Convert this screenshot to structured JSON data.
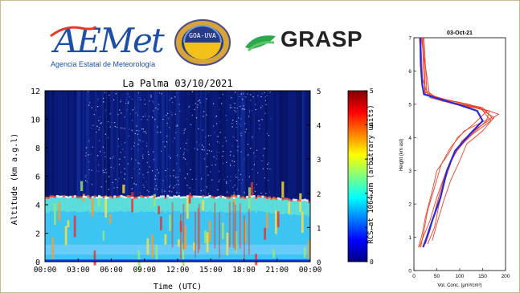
{
  "logos": {
    "aemet_word": "AEMet",
    "aemet_sub": "Agencia Estatal de Meteorología",
    "goa_text": "GOA-UVA",
    "grasp_text": "GRASP",
    "icons": [
      "aemet-logo",
      "goa-uva-seal",
      "grasp-leaf-icon"
    ]
  },
  "chart_data": [
    {
      "type": "heatmap",
      "title": "La Palma  03/10/2021",
      "xlabel": "Time (UTC)",
      "ylabel": "Altitude (km a.g.l)",
      "x_ticks": [
        "00:00",
        "03:00",
        "06:00",
        "09:00",
        "12:00",
        "15:00",
        "18:00",
        "21:00",
        "00:00"
      ],
      "y_ticks": [
        0,
        2,
        4,
        6,
        8,
        10,
        12
      ],
      "ylim": [
        0,
        12
      ],
      "right_y_ticks": [
        0,
        1,
        2,
        3,
        4,
        5
      ],
      "right_ylim": [
        0,
        5
      ],
      "colorbar": {
        "label": "RCS at 1064 nm (arbitrary units)",
        "ticks": [
          0,
          1,
          2,
          3,
          4,
          5
        ],
        "range": [
          0,
          5
        ],
        "colors": [
          "#00007f",
          "#0000ff",
          "#007fff",
          "#00ffff",
          "#7fff7f",
          "#ffff00",
          "#ff7f00",
          "#ff0000",
          "#7f0000"
        ]
      },
      "aerosol_layer_top_km": 4.5
    },
    {
      "type": "line",
      "title": "03-Oct-21",
      "xlabel": "Vol. Conc. (μm³/cm³)",
      "ylabel": "Height (km asl)",
      "xlim": [
        0,
        200
      ],
      "ylim": [
        0,
        7
      ],
      "x_ticks": [
        0,
        50,
        100,
        150,
        200
      ],
      "y_ticks": [
        0,
        1,
        2,
        3,
        4,
        5,
        6,
        7
      ],
      "mean_profile": {
        "color": "#2a2ad8",
        "points": [
          [
            20,
            0.7
          ],
          [
            28,
            1.0
          ],
          [
            40,
            1.5
          ],
          [
            58,
            2.2
          ],
          [
            72,
            3.0
          ],
          [
            90,
            3.6
          ],
          [
            122,
            4.1
          ],
          [
            150,
            4.5
          ],
          [
            138,
            4.8
          ],
          [
            95,
            5.0
          ],
          [
            45,
            5.2
          ],
          [
            22,
            5.3
          ],
          [
            18,
            5.6
          ],
          [
            15,
            6.2
          ],
          [
            14,
            7.0
          ]
        ]
      },
      "individual_profiles": {
        "color": "#e8432a",
        "series": [
          [
            [
              15,
              0.7
            ],
            [
              22,
              1.2
            ],
            [
              30,
              1.8
            ],
            [
              45,
              2.5
            ],
            [
              60,
              3.2
            ],
            [
              80,
              3.7
            ],
            [
              110,
              4.2
            ],
            [
              170,
              4.6
            ],
            [
              150,
              4.9
            ],
            [
              80,
              5.1
            ],
            [
              30,
              5.3
            ],
            [
              18,
              5.8
            ],
            [
              12,
              7.0
            ]
          ],
          [
            [
              30,
              0.8
            ],
            [
              45,
              1.3
            ],
            [
              55,
              2.0
            ],
            [
              70,
              2.8
            ],
            [
              85,
              3.4
            ],
            [
              105,
              3.9
            ],
            [
              140,
              4.3
            ],
            [
              185,
              4.7
            ],
            [
              120,
              5.0
            ],
            [
              50,
              5.2
            ],
            [
              20,
              5.4
            ],
            [
              15,
              7.0
            ]
          ],
          [
            [
              10,
              0.7
            ],
            [
              18,
              1.1
            ],
            [
              25,
              1.6
            ],
            [
              40,
              2.4
            ],
            [
              50,
              3.0
            ],
            [
              75,
              3.5
            ],
            [
              95,
              4.0
            ],
            [
              130,
              4.4
            ],
            [
              160,
              4.8
            ],
            [
              70,
              5.1
            ],
            [
              25,
              5.3
            ],
            [
              20,
              7.0
            ]
          ],
          [
            [
              40,
              0.9
            ],
            [
              50,
              1.4
            ],
            [
              65,
              2.1
            ],
            [
              80,
              2.7
            ],
            [
              100,
              3.3
            ],
            [
              115,
              3.8
            ],
            [
              150,
              4.2
            ],
            [
              175,
              4.6
            ],
            [
              140,
              4.9
            ],
            [
              60,
              5.1
            ],
            [
              28,
              5.4
            ],
            [
              22,
              7.0
            ]
          ],
          [
            [
              12,
              0.7
            ],
            [
              20,
              1.0
            ],
            [
              35,
              1.5
            ],
            [
              50,
              2.2
            ],
            [
              68,
              2.9
            ],
            [
              88,
              3.5
            ],
            [
              118,
              4.0
            ],
            [
              158,
              4.5
            ],
            [
              165,
              4.8
            ],
            [
              90,
              5.0
            ],
            [
              35,
              5.2
            ],
            [
              16,
              7.0
            ]
          ],
          [
            [
              25,
              0.8
            ],
            [
              35,
              1.2
            ],
            [
              48,
              1.9
            ],
            [
              62,
              2.6
            ],
            [
              78,
              3.2
            ],
            [
              98,
              3.7
            ],
            [
              128,
              4.1
            ],
            [
              168,
              4.5
            ],
            [
              145,
              4.9
            ],
            [
              65,
              5.1
            ],
            [
              24,
              5.3
            ],
            [
              18,
              7.0
            ]
          ]
        ]
      }
    }
  ]
}
